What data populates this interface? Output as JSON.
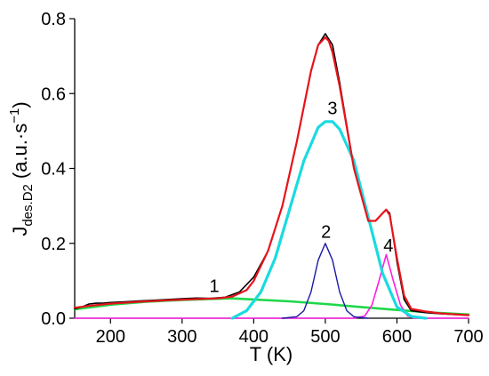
{
  "chart_data": {
    "type": "line",
    "title": "",
    "xlabel": "T (K)",
    "ylabel": {
      "base": "J",
      "subscript": "des.D2",
      "unit_prefix": "(a.u.·s",
      "unit_superscript": "−1",
      "unit_suffix": ")"
    },
    "xlim": [
      150,
      700
    ],
    "ylim": [
      0,
      0.8
    ],
    "xticks": [
      200,
      300,
      400,
      500,
      600,
      700
    ],
    "yticks": [
      0.0,
      0.2,
      0.4,
      0.6,
      0.8
    ],
    "xtick_labels": [
      "200",
      "300",
      "400",
      "500",
      "600",
      "700"
    ],
    "ytick_labels": [
      "0.0",
      "0.2",
      "0.4",
      "0.6",
      "0.8"
    ],
    "grid": false,
    "legend": "none",
    "series": [
      {
        "role": "experimental",
        "color": "#000000",
        "x": [
          150,
          160,
          170,
          180,
          190,
          200,
          220,
          240,
          260,
          280,
          300,
          320,
          340,
          360,
          380,
          400,
          420,
          440,
          460,
          480,
          490,
          500,
          510,
          520,
          540,
          560,
          570,
          580,
          585,
          590,
          600,
          610,
          620,
          640,
          660,
          680,
          700
        ],
        "y": [
          0.025,
          0.03,
          0.038,
          0.04,
          0.04,
          0.042,
          0.044,
          0.046,
          0.048,
          0.05,
          0.052,
          0.054,
          0.053,
          0.056,
          0.07,
          0.11,
          0.18,
          0.3,
          0.47,
          0.66,
          0.73,
          0.76,
          0.73,
          0.63,
          0.4,
          0.26,
          0.26,
          0.28,
          0.29,
          0.28,
          0.15,
          0.05,
          0.02,
          0.015,
          0.012,
          0.01,
          0.008
        ]
      },
      {
        "role": "fit-sum",
        "color": "#e8131b",
        "x": [
          150,
          170,
          200,
          240,
          280,
          320,
          350,
          370,
          390,
          400,
          420,
          440,
          460,
          480,
          490,
          500,
          505,
          510,
          520,
          540,
          560,
          570,
          580,
          585,
          590,
          600,
          610,
          620,
          640,
          660,
          700
        ],
        "y": [
          0.028,
          0.033,
          0.039,
          0.044,
          0.048,
          0.051,
          0.053,
          0.058,
          0.075,
          0.1,
          0.18,
          0.3,
          0.47,
          0.66,
          0.73,
          0.75,
          0.74,
          0.71,
          0.62,
          0.4,
          0.26,
          0.26,
          0.28,
          0.29,
          0.275,
          0.16,
          0.06,
          0.025,
          0.018,
          0.013,
          0.008
        ]
      },
      {
        "label": "1",
        "color": "#1fd84a",
        "x": [
          150,
          200,
          250,
          300,
          350,
          370,
          400,
          450,
          500,
          550,
          600,
          650,
          700
        ],
        "y": [
          0.024,
          0.036,
          0.044,
          0.049,
          0.052,
          0.053,
          0.05,
          0.045,
          0.038,
          0.03,
          0.022,
          0.015,
          0.01
        ]
      },
      {
        "label": "2",
        "color": "#1a1aa8",
        "x": [
          440,
          460,
          470,
          480,
          490,
          500,
          510,
          520,
          530,
          540,
          560
        ],
        "y": [
          0.0,
          0.004,
          0.02,
          0.07,
          0.155,
          0.2,
          0.155,
          0.07,
          0.02,
          0.004,
          0.0
        ]
      },
      {
        "label": "3",
        "color": "#19dbe0",
        "x": [
          370,
          390,
          410,
          430,
          450,
          470,
          490,
          500,
          510,
          520,
          540,
          560,
          580,
          600,
          620,
          640
        ],
        "y": [
          0.0,
          0.02,
          0.07,
          0.16,
          0.29,
          0.42,
          0.51,
          0.525,
          0.525,
          0.505,
          0.42,
          0.27,
          0.12,
          0.03,
          0.005,
          0.0
        ]
      },
      {
        "label": "4",
        "color": "#ff1ee3",
        "x": [
          150,
          540,
          555,
          565,
          575,
          585,
          595,
          605,
          615,
          625,
          640,
          700
        ],
        "y": [
          0.0,
          0.0,
          0.006,
          0.035,
          0.1,
          0.17,
          0.1,
          0.035,
          0.006,
          0.0,
          0.0,
          0.0
        ]
      }
    ],
    "annotations": [
      {
        "text": "1",
        "x": 345,
        "y": 0.07
      },
      {
        "text": "2",
        "x": 501,
        "y": 0.215
      },
      {
        "text": "3",
        "x": 510,
        "y": 0.545
      },
      {
        "text": "4",
        "x": 588,
        "y": 0.178
      }
    ]
  }
}
